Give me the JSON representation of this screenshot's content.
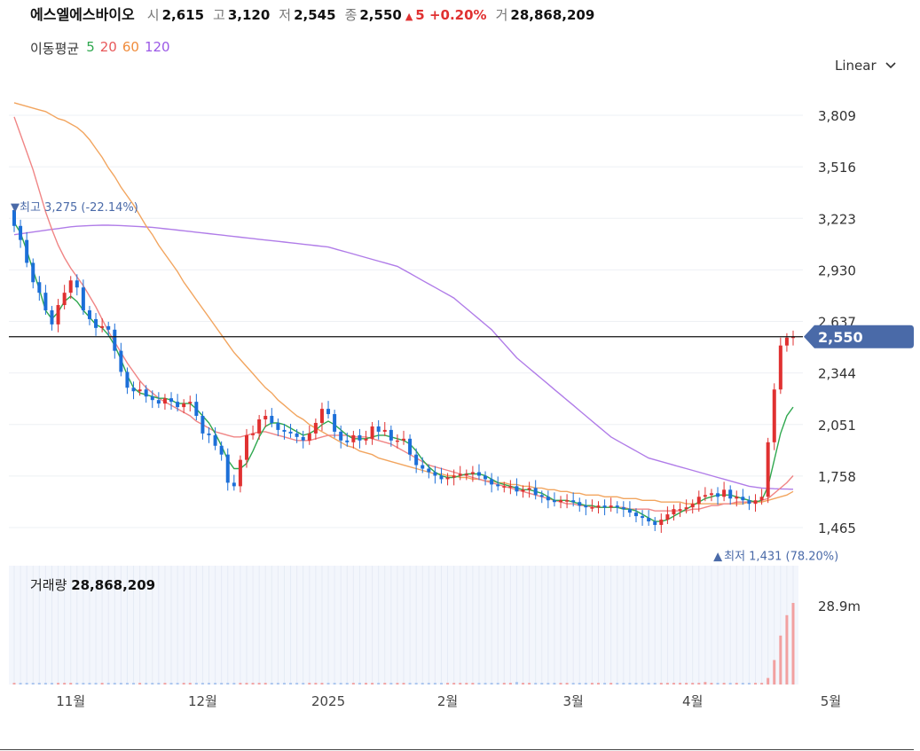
{
  "header": {
    "name": "에스엘에스바이오",
    "open_label": "시",
    "open": "2,615",
    "high_label": "고",
    "high": "3,120",
    "low_label": "저",
    "low": "2,545",
    "close_label": "종",
    "close": "2,550",
    "change": "5",
    "change_pct": "+0.20%",
    "volume_label": "거",
    "volume": "28,868,209"
  },
  "ma_legend": {
    "title": "이동평균",
    "items": [
      {
        "label": "5",
        "color": "#2fa84f"
      },
      {
        "label": "20",
        "color": "#e8585a"
      },
      {
        "label": "60",
        "color": "#f08c3c"
      },
      {
        "label": "120",
        "color": "#9b59e6"
      }
    ]
  },
  "scale_selector": {
    "value": "Linear"
  },
  "volume_panel": {
    "title": "거래량",
    "value": "28,868,209",
    "axis_label": "28.9m"
  },
  "colors": {
    "up": "#e03131",
    "down": "#1c6fd8",
    "ma5": "#2fa84f",
    "ma20": "#f08585",
    "ma60": "#f2a55f",
    "ma120": "#b07ce8",
    "price_tag": "#4a6aa8"
  },
  "chart_data": {
    "type": "candlestick",
    "y_ticks": [
      "3,809",
      "3,516",
      "3,223",
      "2,930",
      "2,637",
      "2,344",
      "2,051",
      "1,758",
      "1,465"
    ],
    "y_tick_values": [
      3809,
      3516,
      3223,
      2930,
      2637,
      2344,
      2051,
      1758,
      1465
    ],
    "ylim": [
      1400,
      3900
    ],
    "x_ticks": [
      {
        "label": "11월",
        "index": 9
      },
      {
        "label": "12월",
        "index": 30
      },
      {
        "label": "2025",
        "index": 50
      },
      {
        "label": "2월",
        "index": 69
      },
      {
        "label": "3월",
        "index": 89
      },
      {
        "label": "4월",
        "index": 108
      },
      {
        "label": "5월",
        "index": 130
      }
    ],
    "current_price": 2550,
    "current_price_label": "2,550",
    "annotations": {
      "high": {
        "text": "최고 3,275 (-22.14%)",
        "value": 3275,
        "index": 0
      },
      "low": {
        "text": "최저 1,431 (78.20%)",
        "value": 1431,
        "index": 113
      }
    },
    "closes": [
      3180,
      3100,
      2970,
      2860,
      2800,
      2700,
      2620,
      2730,
      2800,
      2870,
      2830,
      2700,
      2650,
      2600,
      2610,
      2590,
      2470,
      2350,
      2260,
      2240,
      2250,
      2210,
      2190,
      2170,
      2200,
      2180,
      2150,
      2170,
      2180,
      2100,
      2000,
      1990,
      1930,
      1880,
      1720,
      1700,
      1850,
      1990,
      2000,
      2080,
      2100,
      2060,
      2020,
      2010,
      2000,
      1980,
      1960,
      2000,
      2060,
      2140,
      2110,
      2010,
      1960,
      1950,
      1990,
      1960,
      1970,
      2040,
      2010,
      2020,
      1960,
      1960,
      1970,
      1880,
      1820,
      1800,
      1780,
      1760,
      1740,
      1750,
      1760,
      1770,
      1770,
      1780,
      1760,
      1740,
      1710,
      1700,
      1700,
      1700,
      1670,
      1680,
      1690,
      1650,
      1640,
      1620,
      1610,
      1620,
      1620,
      1610,
      1590,
      1580,
      1580,
      1590,
      1580,
      1590,
      1580,
      1570,
      1550,
      1530,
      1520,
      1500,
      1480,
      1510,
      1540,
      1570,
      1570,
      1580,
      1600,
      1640,
      1650,
      1660,
      1640,
      1680,
      1630,
      1640,
      1620,
      1600,
      1620,
      1640,
      1950,
      2250,
      2500,
      2545,
      2550
    ],
    "ma5": [
      3200,
      3140,
      3040,
      2930,
      2820,
      2700,
      2650,
      2690,
      2750,
      2780,
      2750,
      2700,
      2660,
      2620,
      2600,
      2560,
      2500,
      2420,
      2330,
      2260,
      2230,
      2220,
      2210,
      2200,
      2200,
      2190,
      2170,
      2170,
      2170,
      2140,
      2100,
      2060,
      2000,
      1930,
      1850,
      1800,
      1800,
      1830,
      1900,
      1980,
      2040,
      2060,
      2060,
      2050,
      2030,
      2010,
      1990,
      2000,
      2020,
      2050,
      2070,
      2050,
      2020,
      1990,
      1970,
      1970,
      1970,
      1980,
      1990,
      1990,
      1980,
      1970,
      1960,
      1940,
      1900,
      1850,
      1810,
      1780,
      1760,
      1750,
      1750,
      1760,
      1770,
      1770,
      1770,
      1760,
      1740,
      1720,
      1710,
      1700,
      1690,
      1680,
      1680,
      1670,
      1660,
      1640,
      1620,
      1620,
      1620,
      1610,
      1600,
      1590,
      1590,
      1580,
      1580,
      1580,
      1580,
      1570,
      1570,
      1560,
      1540,
      1520,
      1500,
      1500,
      1510,
      1530,
      1550,
      1570,
      1590,
      1610,
      1630,
      1640,
      1650,
      1650,
      1650,
      1640,
      1630,
      1620,
      1610,
      1620,
      1700,
      1850,
      2000,
      2100,
      2150
    ],
    "ma20": [
      3800,
      3700,
      3600,
      3500,
      3380,
      3260,
      3160,
      3070,
      3000,
      2940,
      2890,
      2840,
      2780,
      2720,
      2650,
      2580,
      2520,
      2460,
      2400,
      2350,
      2300,
      2260,
      2230,
      2200,
      2180,
      2160,
      2140,
      2120,
      2100,
      2070,
      2050,
      2030,
      2010,
      2000,
      1990,
      1980,
      1980,
      1990,
      2000,
      2010,
      2010,
      2000,
      1990,
      1980,
      1970,
      1960,
      1960,
      1960,
      1970,
      1980,
      1990,
      1990,
      1990,
      1990,
      1980,
      1980,
      1980,
      1970,
      1960,
      1950,
      1940,
      1920,
      1900,
      1880,
      1860,
      1840,
      1820,
      1810,
      1800,
      1790,
      1780,
      1770,
      1760,
      1750,
      1740,
      1730,
      1720,
      1710,
      1700,
      1690,
      1680,
      1670,
      1660,
      1650,
      1640,
      1630,
      1620,
      1610,
      1600,
      1600,
      1590,
      1590,
      1580,
      1580,
      1580,
      1580,
      1580,
      1580,
      1570,
      1570,
      1570,
      1570,
      1560,
      1560,
      1560,
      1560,
      1560,
      1560,
      1570,
      1570,
      1580,
      1590,
      1590,
      1600,
      1600,
      1610,
      1610,
      1610,
      1610,
      1620,
      1630,
      1660,
      1690,
      1720,
      1760
    ],
    "ma60": [
      3880,
      3870,
      3860,
      3850,
      3840,
      3830,
      3810,
      3790,
      3780,
      3760,
      3740,
      3710,
      3670,
      3620,
      3570,
      3510,
      3460,
      3400,
      3350,
      3300,
      3240,
      3180,
      3130,
      3070,
      3020,
      2970,
      2920,
      2860,
      2810,
      2760,
      2710,
      2660,
      2610,
      2560,
      2510,
      2460,
      2420,
      2380,
      2340,
      2300,
      2260,
      2230,
      2190,
      2160,
      2130,
      2100,
      2080,
      2050,
      2030,
      2010,
      1990,
      1970,
      1950,
      1930,
      1920,
      1900,
      1890,
      1880,
      1860,
      1850,
      1840,
      1830,
      1820,
      1810,
      1800,
      1790,
      1780,
      1770,
      1770,
      1760,
      1760,
      1750,
      1750,
      1740,
      1740,
      1730,
      1730,
      1720,
      1720,
      1710,
      1710,
      1700,
      1700,
      1690,
      1690,
      1680,
      1680,
      1670,
      1670,
      1660,
      1660,
      1650,
      1650,
      1650,
      1640,
      1640,
      1640,
      1630,
      1630,
      1630,
      1620,
      1620,
      1620,
      1610,
      1610,
      1610,
      1610,
      1600,
      1600,
      1600,
      1600,
      1600,
      1600,
      1600,
      1600,
      1600,
      1600,
      1610,
      1610,
      1610,
      1620,
      1630,
      1640,
      1650,
      1670
    ],
    "ma120": [
      3130,
      3135,
      3140,
      3145,
      3150,
      3155,
      3160,
      3165,
      3170,
      3175,
      3178,
      3180,
      3182,
      3183,
      3184,
      3184,
      3183,
      3182,
      3180,
      3178,
      3176,
      3174,
      3172,
      3168,
      3164,
      3160,
      3156,
      3152,
      3148,
      3144,
      3140,
      3136,
      3132,
      3128,
      3124,
      3120,
      3116,
      3112,
      3108,
      3104,
      3100,
      3096,
      3092,
      3088,
      3084,
      3080,
      3076,
      3072,
      3068,
      3064,
      3060,
      3050,
      3040,
      3030,
      3020,
      3010,
      3000,
      2990,
      2980,
      2970,
      2960,
      2950,
      2930,
      2910,
      2890,
      2870,
      2850,
      2830,
      2810,
      2790,
      2770,
      2740,
      2710,
      2680,
      2650,
      2620,
      2590,
      2550,
      2510,
      2470,
      2430,
      2400,
      2370,
      2340,
      2310,
      2280,
      2250,
      2220,
      2190,
      2160,
      2130,
      2100,
      2070,
      2040,
      2010,
      1980,
      1960,
      1940,
      1920,
      1900,
      1880,
      1860,
      1850,
      1840,
      1830,
      1820,
      1810,
      1800,
      1790,
      1780,
      1770,
      1760,
      1750,
      1740,
      1730,
      1720,
      1710,
      1700,
      1695,
      1690,
      1688,
      1686,
      1685,
      1684,
      1683
    ],
    "volume_ratio": [
      0.02,
      0.02,
      0.02,
      0.02,
      0.02,
      0.02,
      0.02,
      0.02,
      0.02,
      0.02,
      0.02,
      0.02,
      0.02,
      0.02,
      0.02,
      0.02,
      0.02,
      0.02,
      0.02,
      0.02,
      0.02,
      0.02,
      0.02,
      0.02,
      0.02,
      0.02,
      0.02,
      0.02,
      0.02,
      0.02,
      0.02,
      0.02,
      0.02,
      0.02,
      0.02,
      0.02,
      0.02,
      0.02,
      0.02,
      0.02,
      0.02,
      0.02,
      0.02,
      0.02,
      0.02,
      0.02,
      0.02,
      0.02,
      0.02,
      0.02,
      0.02,
      0.02,
      0.02,
      0.02,
      0.02,
      0.02,
      0.02,
      0.02,
      0.02,
      0.02,
      0.02,
      0.02,
      0.02,
      0.02,
      0.02,
      0.02,
      0.02,
      0.02,
      0.02,
      0.02,
      0.02,
      0.02,
      0.02,
      0.02,
      0.02,
      0.02,
      0.02,
      0.02,
      0.02,
      0.02,
      0.03,
      0.02,
      0.02,
      0.02,
      0.02,
      0.02,
      0.02,
      0.02,
      0.02,
      0.02,
      0.02,
      0.02,
      0.02,
      0.02,
      0.02,
      0.02,
      0.02,
      0.02,
      0.02,
      0.02,
      0.02,
      0.02,
      0.02,
      0.02,
      0.02,
      0.02,
      0.02,
      0.02,
      0.02,
      0.02,
      0.03,
      0.02,
      0.02,
      0.02,
      0.02,
      0.02,
      0.02,
      0.02,
      0.02,
      0.02,
      0.08,
      0.3,
      0.6,
      0.85,
      1.0
    ]
  }
}
